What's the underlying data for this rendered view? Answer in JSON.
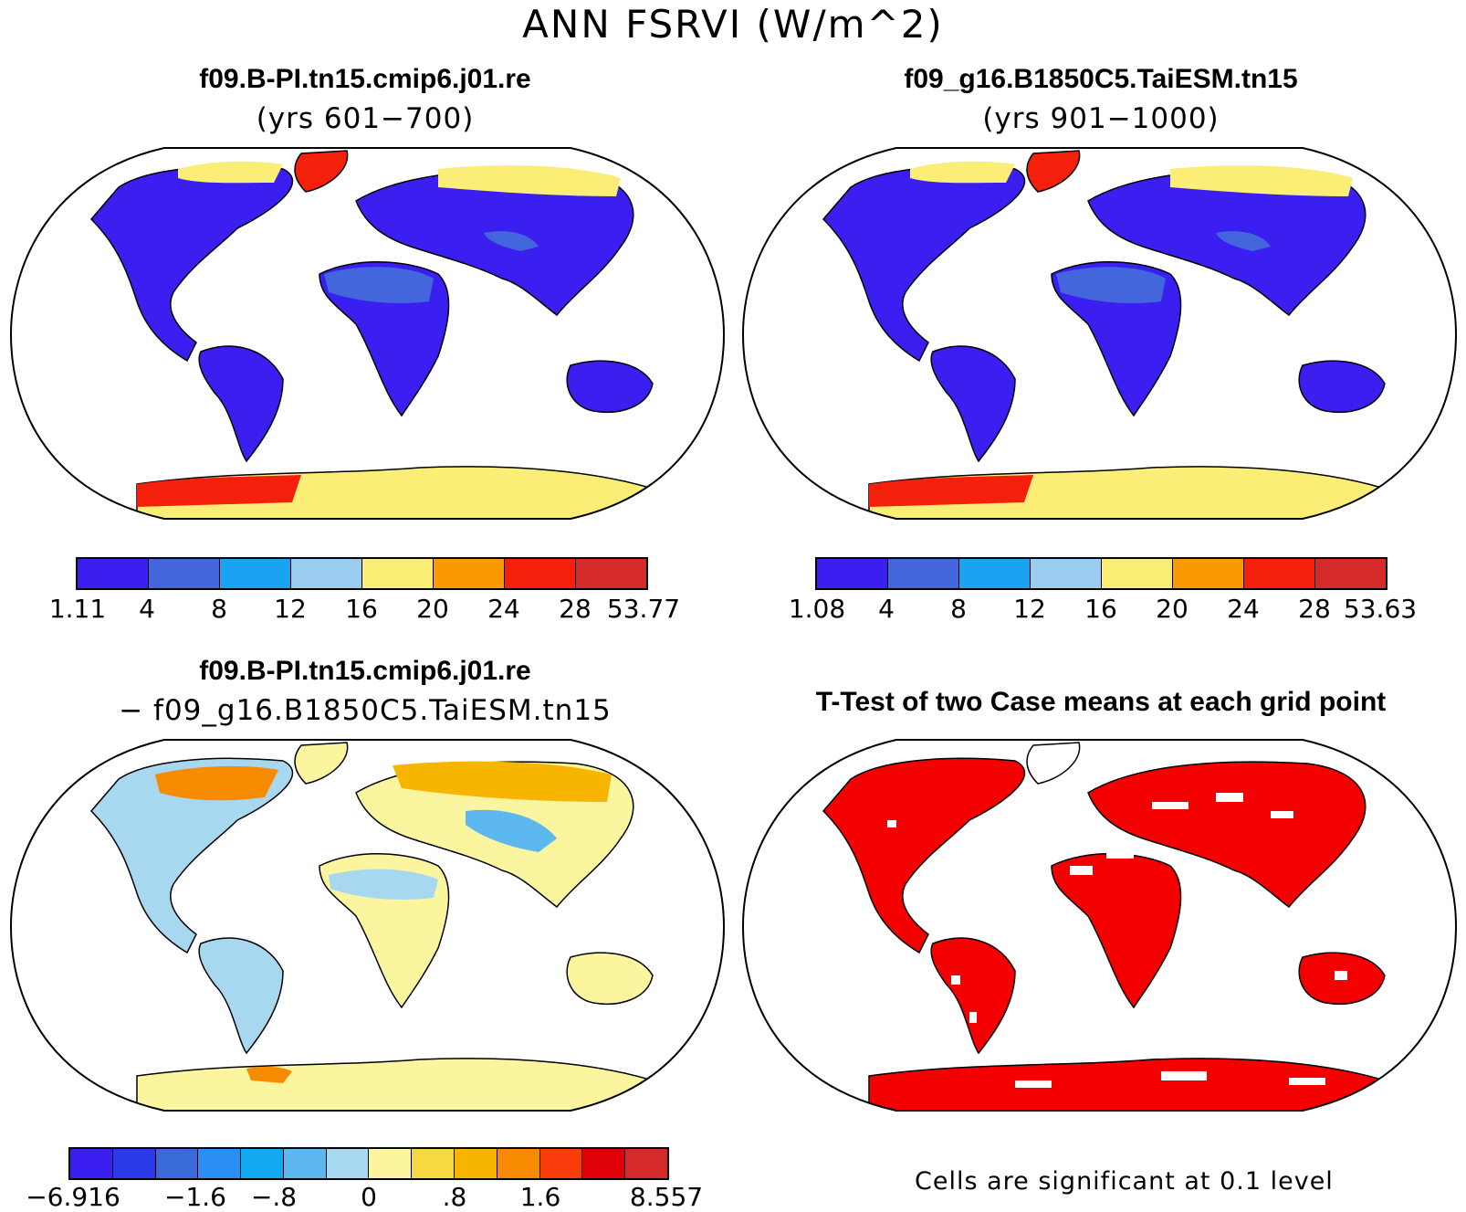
{
  "figure_title": "ANN FSRVI (W/m^2)",
  "panels": [
    {
      "id": "case1",
      "title": "f09.B-PI.tn15.cmip6.j01.re",
      "subtitle": "(yrs 601−700)"
    },
    {
      "id": "case2",
      "title": "f09_g16.B1850C5.TaiESM.tn15",
      "subtitle": "(yrs 901−1000)"
    },
    {
      "id": "diff",
      "title": "f09.B-PI.tn15.cmip6.j01.re",
      "subtitle": "− f09_g16.B1850C5.TaiESM.tn15"
    },
    {
      "id": "ttest",
      "title": "T-Test of two Case means at each grid point",
      "subtitle": ""
    }
  ],
  "colorbars": {
    "case1": {
      "colors": [
        "#3a1ff0",
        "#4466dd",
        "#1aa3f0",
        "#99ccee",
        "#fbee77",
        "#fb9a00",
        "#f5200c",
        "#d42a2a"
      ],
      "labels": [
        "1.11",
        "4",
        "8",
        "12",
        "16",
        "20",
        "24",
        "28",
        "53.77"
      ]
    },
    "case2": {
      "colors": [
        "#3a1ff0",
        "#4466dd",
        "#1aa3f0",
        "#99ccee",
        "#fbee77",
        "#fb9a00",
        "#f5200c",
        "#d42a2a"
      ],
      "labels": [
        "1.08",
        "4",
        "8",
        "12",
        "16",
        "20",
        "24",
        "28",
        "53.63"
      ]
    },
    "diff": {
      "colors": [
        "#3a1ff0",
        "#2a3ae8",
        "#3a6ad8",
        "#2a8ff2",
        "#14aaf0",
        "#5cb8ee",
        "#a8d8f0",
        "#fbf5a0",
        "#f8d840",
        "#f8b500",
        "#f88a00",
        "#f83c0a",
        "#e00008",
        "#d42a2a"
      ],
      "labels": [
        "−6.916",
        "−1.6",
        "−.8",
        "0",
        ".8",
        "1.6",
        "8.557"
      ]
    }
  },
  "ttest_note": "Cells are significant at 0.1 level"
}
